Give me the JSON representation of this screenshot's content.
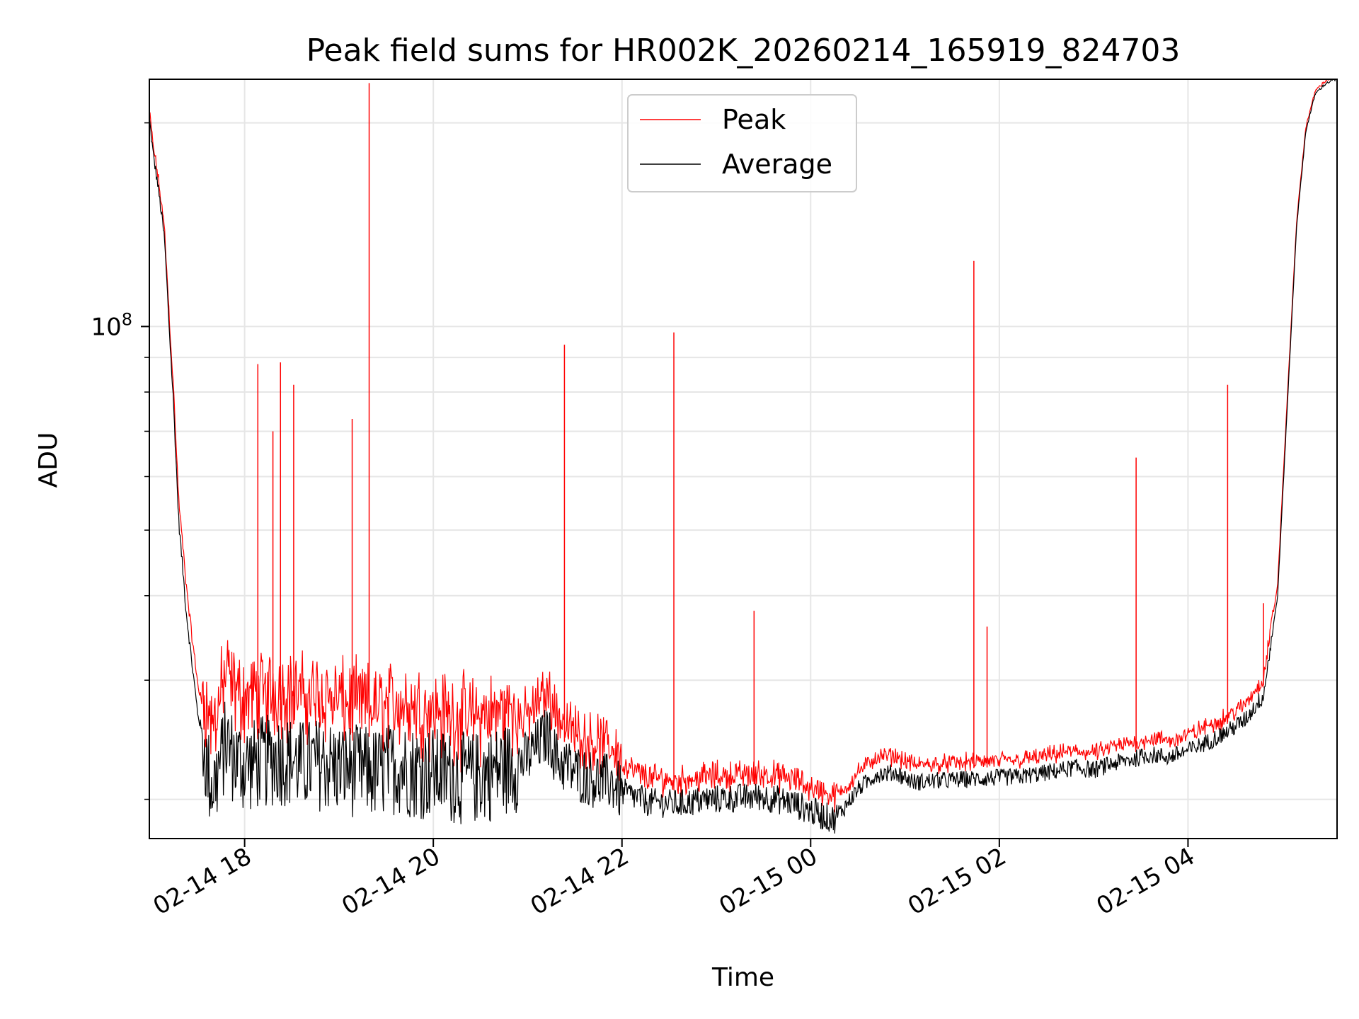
{
  "chart_data": {
    "type": "line",
    "title": "Peak field sums for HR002K_20260214_165919_824703",
    "xlabel": "Time",
    "ylabel": "ADU",
    "yscale": "log",
    "ylim": [
      17500000,
      232000000
    ],
    "xlim": [
      16.99,
      29.58
    ],
    "grid": true,
    "grid_minor_y": true,
    "legend_position": "upper center",
    "x_ticks": [
      {
        "value": 18,
        "label": "02-14 18"
      },
      {
        "value": 20,
        "label": "02-14 20"
      },
      {
        "value": 22,
        "label": "02-14 22"
      },
      {
        "value": 24,
        "label": "02-15 00"
      },
      {
        "value": 26,
        "label": "02-15 02"
      },
      {
        "value": 28,
        "label": "02-15 04"
      }
    ],
    "y_major_ticks": [
      {
        "value": 100000000,
        "base": "10",
        "exp": "8"
      }
    ],
    "y_minor_ticks": [
      20000000,
      30000000,
      40000000,
      50000000,
      60000000,
      70000000,
      80000000,
      90000000,
      200000000
    ],
    "series": [
      {
        "name": "Average",
        "color": "#000000",
        "x": [
          16.99,
          17.03,
          17.08,
          17.15,
          17.2,
          17.25,
          17.3,
          17.38,
          17.45,
          17.5,
          17.55,
          17.6,
          17.65,
          17.7,
          17.75,
          17.8,
          17.9,
          18.0,
          18.2,
          18.4,
          18.6,
          18.8,
          19.0,
          19.2,
          19.4,
          19.6,
          19.8,
          20.0,
          20.2,
          20.4,
          20.6,
          20.8,
          21.0,
          21.2,
          21.25,
          21.3,
          21.5,
          21.7,
          21.9,
          22.0,
          22.3,
          22.6,
          22.9,
          23.2,
          23.5,
          23.8,
          24.1,
          24.25,
          24.35,
          24.5,
          24.7,
          24.9,
          25.1,
          25.3,
          25.6,
          25.9,
          26.2,
          26.5,
          26.8,
          27.0,
          27.2,
          27.4,
          27.6,
          27.8,
          28.0,
          28.2,
          28.4,
          28.6,
          28.8,
          28.95,
          29.05,
          29.15,
          29.25,
          29.35,
          29.45,
          29.52,
          29.58
        ],
        "values": [
          203000000,
          180000000,
          162000000,
          135000000,
          100000000,
          75000000,
          52000000,
          38000000,
          31000000,
          27000000,
          25000000,
          22500000,
          21000000,
          21500000,
          23000000,
          24500000,
          23000000,
          22500000,
          23000000,
          23200000,
          22600000,
          22800000,
          22400000,
          22300000,
          22000000,
          22600000,
          22200000,
          22100000,
          21800000,
          21700000,
          22000000,
          22500000,
          23000000,
          25000000,
          24500000,
          23000000,
          22000000,
          21500000,
          21200000,
          20500000,
          19800000,
          19700000,
          20000000,
          20100000,
          20200000,
          19800000,
          19000000,
          18700000,
          19400000,
          20700000,
          21800000,
          21900000,
          21200000,
          21300000,
          21400000,
          21500000,
          21600000,
          21900000,
          22300000,
          22100000,
          22600000,
          22900000,
          23300000,
          23100000,
          23600000,
          24300000,
          25100000,
          26200000,
          28500000,
          40000000,
          75000000,
          140000000,
          195000000,
          221000000,
          228000000,
          231000000,
          232000000
        ]
      },
      {
        "name": "Peak",
        "color": "#ff0000",
        "x": [
          16.99,
          17.03,
          17.08,
          17.15,
          17.2,
          17.25,
          17.3,
          17.38,
          17.45,
          17.5,
          17.55,
          17.6,
          17.65,
          17.7,
          17.75,
          17.8,
          17.9,
          18.0,
          18.2,
          18.4,
          18.6,
          18.8,
          19.0,
          19.2,
          19.4,
          19.6,
          19.8,
          20.0,
          20.2,
          20.4,
          20.6,
          20.8,
          21.0,
          21.2,
          21.25,
          21.3,
          21.5,
          21.7,
          21.9,
          22.0,
          22.3,
          22.6,
          22.9,
          23.2,
          23.5,
          23.8,
          24.1,
          24.25,
          24.35,
          24.5,
          24.7,
          24.9,
          25.1,
          25.3,
          25.6,
          25.9,
          26.2,
          26.5,
          26.8,
          27.0,
          27.2,
          27.4,
          27.6,
          27.8,
          28.0,
          28.2,
          28.4,
          28.6,
          28.8,
          28.95,
          29.05,
          29.15,
          29.25,
          29.35,
          29.45,
          29.52,
          29.58
        ],
        "values": [
          205000000,
          183000000,
          165000000,
          138000000,
          103000000,
          78000000,
          55000000,
          41000000,
          33500000,
          29500000,
          27000000,
          24500000,
          23000000,
          24000000,
          26000000,
          27500000,
          26000000,
          25500000,
          26000000,
          26200000,
          25600000,
          25800000,
          25200000,
          25000000,
          24600000,
          25200000,
          24800000,
          24500000,
          24000000,
          23800000,
          24000000,
          24400000,
          24800000,
          27000000,
          26500000,
          25000000,
          23500000,
          22800000,
          22400000,
          21600000,
          20800000,
          20600000,
          20900000,
          21000000,
          21100000,
          20700000,
          19900000,
          19500000,
          20200000,
          21500000,
          22600000,
          22700000,
          22000000,
          22100000,
          22200000,
          22300000,
          22400000,
          22700000,
          23100000,
          22900000,
          23400000,
          23700000,
          24100000,
          23900000,
          24400000,
          25100000,
          25900000,
          27000000,
          29500000,
          41500000,
          77000000,
          142000000,
          197000000,
          222000000,
          229000000,
          231500000,
          232000000
        ],
        "spikes": [
          {
            "x": 18.14,
            "value": 88000000
          },
          {
            "x": 18.38,
            "value": 88500000
          },
          {
            "x": 18.52,
            "value": 82000000
          },
          {
            "x": 18.3,
            "value": 70000000
          },
          {
            "x": 19.14,
            "value": 73000000
          },
          {
            "x": 19.32,
            "value": 229000000
          },
          {
            "x": 21.39,
            "value": 94000000
          },
          {
            "x": 22.55,
            "value": 98000000
          },
          {
            "x": 23.4,
            "value": 38000000
          },
          {
            "x": 25.73,
            "value": 125000000
          },
          {
            "x": 25.87,
            "value": 36000000
          },
          {
            "x": 27.45,
            "value": 64000000
          },
          {
            "x": 28.42,
            "value": 82000000
          },
          {
            "x": 28.8,
            "value": 39000000
          }
        ]
      }
    ]
  }
}
